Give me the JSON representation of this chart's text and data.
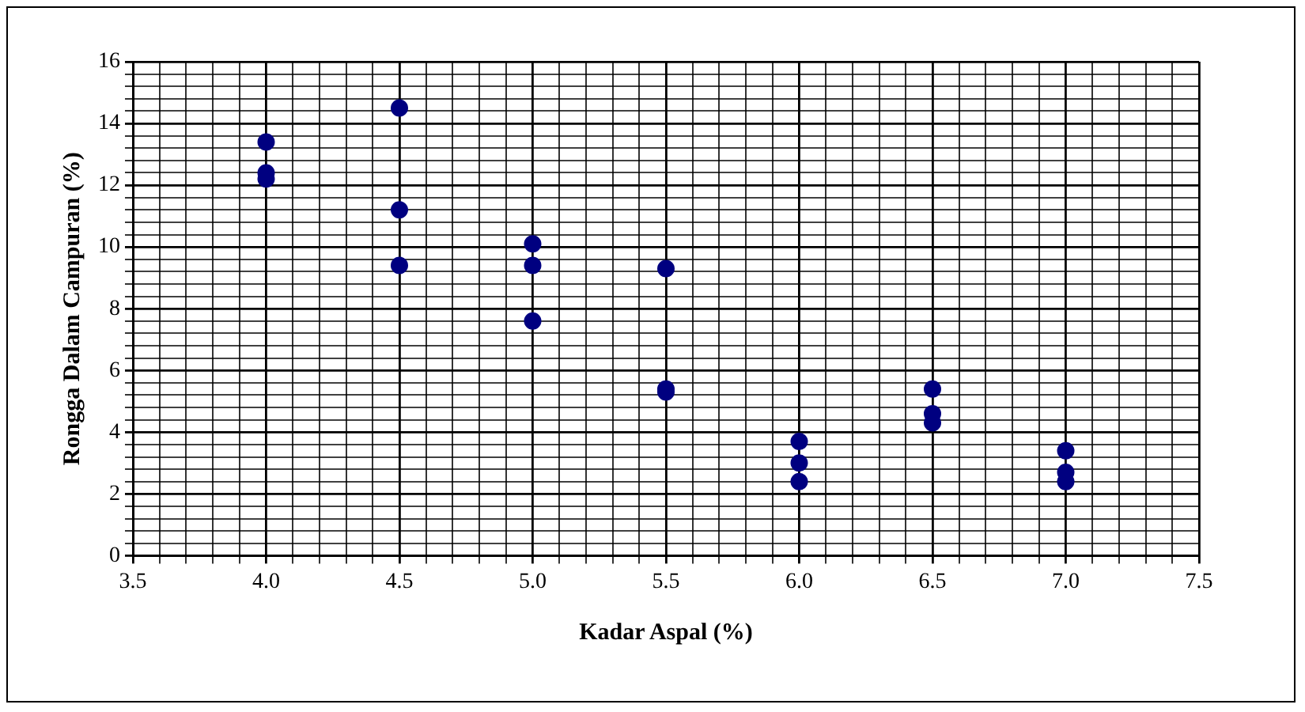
{
  "chart_data": {
    "type": "scatter",
    "xlabel": "Kadar Aspal (%)",
    "ylabel": "Rongga Dalam Campuran (%)",
    "series": [
      {
        "color": "#000080",
        "x": [
          4.0,
          4.0,
          4.0,
          4.5,
          4.5,
          4.5,
          5.0,
          5.0,
          5.0,
          5.5,
          5.5,
          5.5,
          6.0,
          6.0,
          6.0,
          6.5,
          6.5,
          6.5,
          7.0,
          7.0,
          7.0
        ],
        "values": [
          13.4,
          12.4,
          12.2,
          14.5,
          11.2,
          9.4,
          10.1,
          9.4,
          7.6,
          9.3,
          5.4,
          5.3,
          3.7,
          3.0,
          2.4,
          5.4,
          4.6,
          4.3,
          3.4,
          2.7,
          2.4
        ]
      }
    ],
    "xlim": [
      3.5,
      7.5
    ],
    "xticks": [
      3.5,
      {
        "value": 3.6,
        "label": null
      },
      {
        "value": 3.7,
        "label": null
      },
      {
        "value": 3.8,
        "label": null
      },
      {
        "value": 3.9,
        "label": null
      },
      {
        "value": 4,
        "label": "4.0"
      },
      {
        "value": 4.1,
        "label": null
      },
      {
        "value": 4.2,
        "label": null
      },
      {
        "value": 4.3,
        "label": null
      },
      {
        "value": 4.4,
        "label": null
      },
      4.5,
      {
        "value": 4.6,
        "label": null
      },
      {
        "value": 4.7,
        "label": null
      },
      {
        "value": 4.8,
        "label": null
      },
      {
        "value": 4.9,
        "label": null
      },
      {
        "value": 5,
        "label": "5.0"
      },
      {
        "value": 5.1,
        "label": null
      },
      {
        "value": 5.2,
        "label": null
      },
      {
        "value": 5.3,
        "label": null
      },
      {
        "value": 5.4,
        "label": null
      },
      5.5,
      {
        "value": 5.6,
        "label": null
      },
      {
        "value": 5.7,
        "label": null
      },
      {
        "value": 5.8,
        "label": null
      },
      {
        "value": 5.9,
        "label": null
      },
      {
        "value": 6,
        "label": "6.0"
      },
      {
        "value": 6.1,
        "label": null
      },
      {
        "value": 6.2,
        "label": null
      },
      {
        "value": 6.3,
        "label": null
      },
      {
        "value": 6.4,
        "label": null
      },
      6.5,
      {
        "value": 6.6,
        "label": null
      },
      {
        "value": 6.7,
        "label": null
      },
      {
        "value": 6.8,
        "label": null
      },
      {
        "value": 6.9,
        "label": null
      },
      {
        "value": 7,
        "label": "7.0"
      },
      {
        "value": 7.1,
        "label": null
      },
      {
        "value": 7.2,
        "label": null
      },
      {
        "value": 7.3,
        "label": null
      },
      {
        "value": 7.4,
        "label": null
      },
      7.5
    ],
    "ylim": [
      0,
      16
    ],
    "yticks": [
      0,
      {
        "value": 0.4,
        "label": null
      },
      {
        "value": 0.8,
        "label": null
      },
      {
        "value": 1.2,
        "label": null
      },
      {
        "value": 1.6,
        "label": null
      },
      2,
      {
        "value": 2.4,
        "label": null
      },
      {
        "value": 2.8,
        "label": null
      },
      {
        "value": 3.2,
        "label": null
      },
      {
        "value": 3.6,
        "label": null
      },
      4,
      {
        "value": 4.4,
        "label": null
      },
      {
        "value": 4.8,
        "label": null
      },
      {
        "value": 5.2,
        "label": null
      },
      {
        "value": 5.6,
        "label": null
      },
      6,
      {
        "value": 6.4,
        "label": null
      },
      {
        "value": 6.8,
        "label": null
      },
      {
        "value": 7.2,
        "label": null
      },
      {
        "value": 7.6,
        "label": null
      },
      8,
      {
        "value": 8.4,
        "label": null
      },
      {
        "value": 8.8,
        "label": null
      },
      {
        "value": 9.2,
        "label": null
      },
      {
        "value": 9.6,
        "label": null
      },
      10,
      {
        "value": 10.4,
        "label": null
      },
      {
        "value": 10.8,
        "label": null
      },
      {
        "value": 11.2,
        "label": null
      },
      {
        "value": 11.6,
        "label": null
      },
      12,
      {
        "value": 12.4,
        "label": null
      },
      {
        "value": 12.8,
        "label": null
      },
      {
        "value": 13.2,
        "label": null
      },
      {
        "value": 13.6,
        "label": null
      },
      14,
      {
        "value": 14.4,
        "label": null
      },
      {
        "value": 14.8,
        "label": null
      },
      {
        "value": 15.2,
        "label": null
      },
      {
        "value": 15.6,
        "label": null
      },
      16
    ],
    "grid": true,
    "marker": "circle",
    "legend": false
  }
}
